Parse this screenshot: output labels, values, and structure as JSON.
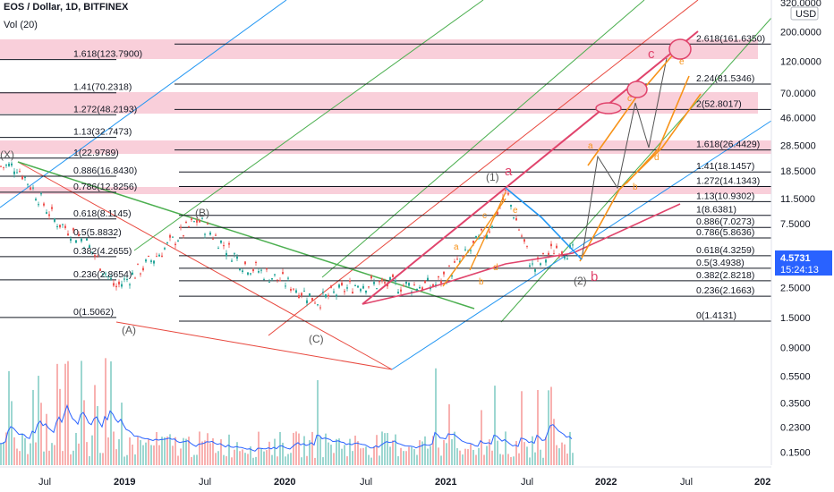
{
  "header": {
    "title": "EOS / Dollar, 1D, BITFINEX",
    "volume_label": "Vol (20)"
  },
  "price_axis": {
    "currency_badge": "USD",
    "ticks": [
      "320.0000",
      "200.0000",
      "120.0000",
      "70.0000",
      "46.0000",
      "28.5000",
      "18.5000",
      "11.5000",
      "7.5000",
      "4.5000",
      "2.5000",
      "1.5000",
      "0.9000",
      "0.5500",
      "0.3500",
      "0.2300",
      "0.1500"
    ],
    "last_price": "4.5731",
    "countdown": "15:24:13",
    "last_price_color": "#2962ff"
  },
  "time_axis": {
    "ticks": [
      "Jul",
      "2019",
      "Jul",
      "2020",
      "Jul",
      "2021",
      "Jul",
      "2022",
      "Jul",
      "202"
    ]
  },
  "fib_left": [
    "1.618(123.7900)",
    "1.41(70.2318)",
    "1.272(48.2193)",
    "1.13(32.7473)",
    "1(22.9789)",
    "0.886(16.8430)",
    "0.786(12.8256)",
    "0.618(8.1145)",
    "0.5(5.8832)",
    "0.382(4.2655)",
    "0.236(2.8654)",
    "0(1.5062)"
  ],
  "fib_right": [
    "2.618(161.6350)",
    "2.24(81.5346)",
    "2(52.8017)",
    "1.618(26.4429)",
    "1.41(18.1457)",
    "1.272(14.1343)",
    "1.13(10.9302)",
    "1(8.6381)",
    "0.886(7.0273)",
    "0.786(5.8636)",
    "0.618(4.3259)",
    "0.5(3.4938)",
    "0.382(2.8218)",
    "0.236(2.1663)",
    "0(1.4131)"
  ],
  "waves": {
    "grey": [
      "(X)",
      "(B)",
      "(A)",
      "(C)",
      "(1)",
      "(2)"
    ],
    "pink": [
      "a",
      "b",
      "c"
    ],
    "orange": [
      "a",
      "b",
      "c",
      "d",
      "e",
      "a",
      "b",
      "c",
      "d",
      "e"
    ]
  },
  "colors": {
    "up": "#26a69a",
    "down": "#ef5350",
    "fib_zone": "#f8c7d3",
    "channel_red": "#e8493f",
    "channel_blue": "#2196f3",
    "channel_green": "#4caf50",
    "wave_pink": "#e0446c",
    "wave_orange": "#f7931a",
    "volume_ma": "#2962ff"
  },
  "chart_data": {
    "type": "line",
    "title": "EOS / Dollar, 1D, BITFINEX",
    "xlabel": "",
    "ylabel": "",
    "y_scale": "log",
    "ylim": [
      0.15,
      320
    ],
    "x": [
      "2018-05",
      "2018-07",
      "2018-10",
      "2019-01",
      "2019-03",
      "2019-06",
      "2019-09",
      "2019-12",
      "2020-03",
      "2020-06",
      "2020-09",
      "2020-12",
      "2021-02",
      "2021-04",
      "2021-05",
      "2021-07",
      "2021-09",
      "2021-11"
    ],
    "series": [
      {
        "name": "",
        "values": [
          20.0,
          8.0,
          5.5,
          2.5,
          3.6,
          8.0,
          3.8,
          2.7,
          2.0,
          2.7,
          2.6,
          2.6,
          4.0,
          6.8,
          12.8,
          3.4,
          5.0,
          4.57
        ]
      }
    ]
  }
}
